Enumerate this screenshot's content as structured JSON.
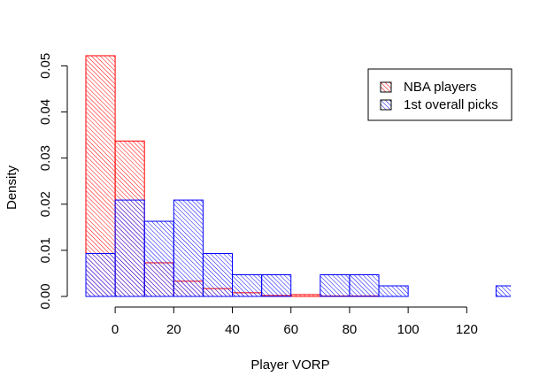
{
  "chart_data": {
    "type": "bar",
    "title": "",
    "xlabel": "Player VORP",
    "ylabel": "Density",
    "xlim": [
      -10,
      135
    ],
    "ylim": [
      0,
      0.052
    ],
    "x_ticks": [
      0,
      20,
      40,
      60,
      80,
      100,
      120
    ],
    "y_ticks": [
      0.0,
      0.01,
      0.02,
      0.03,
      0.04,
      0.05
    ],
    "y_tick_labels": [
      "0.00",
      "0.01",
      "0.02",
      "0.03",
      "0.04",
      "0.05"
    ],
    "bin_edges": [
      -10,
      0,
      10,
      20,
      30,
      40,
      50,
      60,
      70,
      80,
      90,
      100,
      110,
      120,
      130,
      140
    ],
    "legend_position": "top-right",
    "grid": false,
    "series": [
      {
        "name": "NBA players",
        "color": "#ff0000",
        "hatch": "diagonal",
        "values": [
          0.0522,
          0.0337,
          0.0073,
          0.0033,
          0.0017,
          0.0008,
          0.0002,
          0.0004,
          0.0001,
          0.0001,
          0.0,
          0.0,
          0.0,
          0.0,
          0.0
        ]
      },
      {
        "name": "1st overall picks",
        "color": "#0000ff",
        "hatch": "diagonal",
        "values": [
          0.0093,
          0.0209,
          0.0163,
          0.0209,
          0.0093,
          0.0047,
          0.0047,
          0.0,
          0.0047,
          0.0047,
          0.0023,
          0.0,
          0.0,
          0.0,
          0.0023
        ]
      }
    ]
  }
}
